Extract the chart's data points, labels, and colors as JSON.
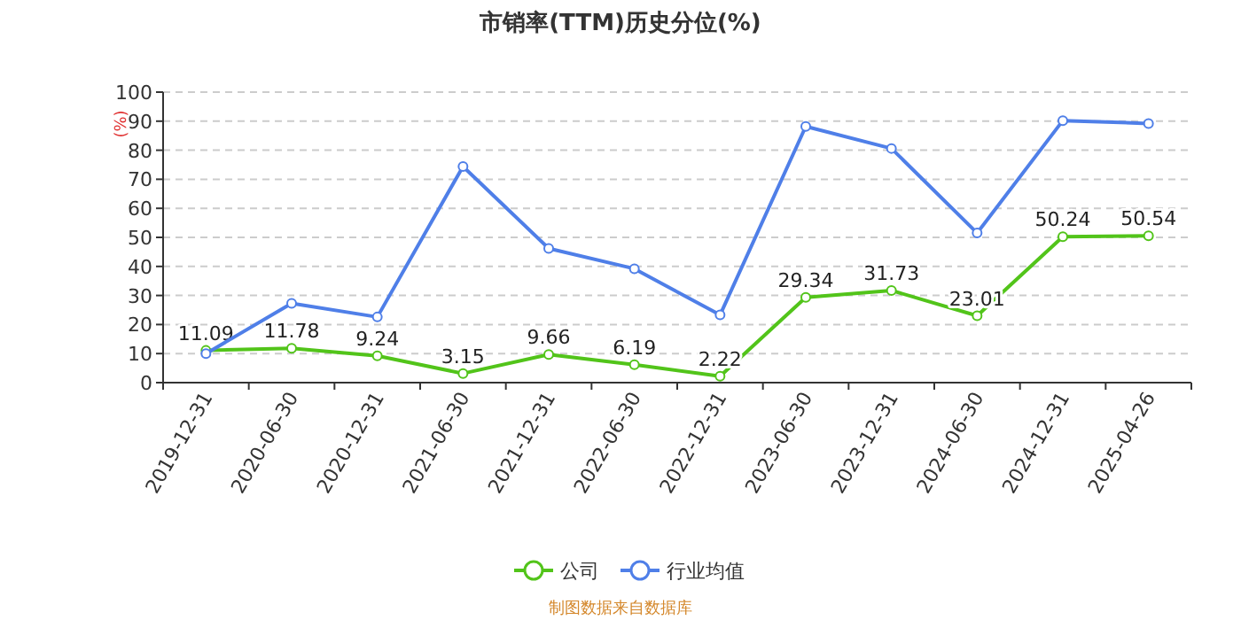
{
  "chart_data": {
    "type": "line",
    "title": "市销率(TTM)历史分位(%)",
    "ylabel": "(%)",
    "categories": [
      "2019-12-31",
      "2020-06-30",
      "2020-12-31",
      "2021-06-30",
      "2021-12-31",
      "2022-06-30",
      "2022-12-31",
      "2023-06-30",
      "2023-12-31",
      "2024-06-30",
      "2024-12-31",
      "2025-04-26"
    ],
    "series": [
      {
        "name": "公司",
        "color": "#52c41a",
        "values": [
          11.09,
          11.78,
          9.24,
          3.15,
          9.66,
          6.19,
          2.22,
          29.34,
          31.73,
          23.01,
          50.24,
          50.54
        ],
        "value_labels": [
          "11.09",
          "11.78",
          "9.24",
          "3.15",
          "9.66",
          "6.19",
          "2.22",
          "29.34",
          "31.73",
          "23.01",
          "50.24",
          "50.54"
        ]
      },
      {
        "name": "行业均值",
        "color": "#4f7fe8",
        "values": [
          10,
          27.3,
          22.6,
          74.4,
          46.2,
          39.2,
          23.3,
          88.2,
          80.6,
          51.5,
          90.2,
          89.2
        ]
      }
    ],
    "ylim": [
      0,
      100
    ],
    "yticks": [
      0,
      10,
      20,
      30,
      40,
      50,
      60,
      70,
      80,
      90,
      100
    ],
    "grid": "y",
    "legend": "bottom",
    "marker": "circle",
    "line_style": "solid",
    "annotations": [
      "制图数据来自数据库"
    ]
  }
}
